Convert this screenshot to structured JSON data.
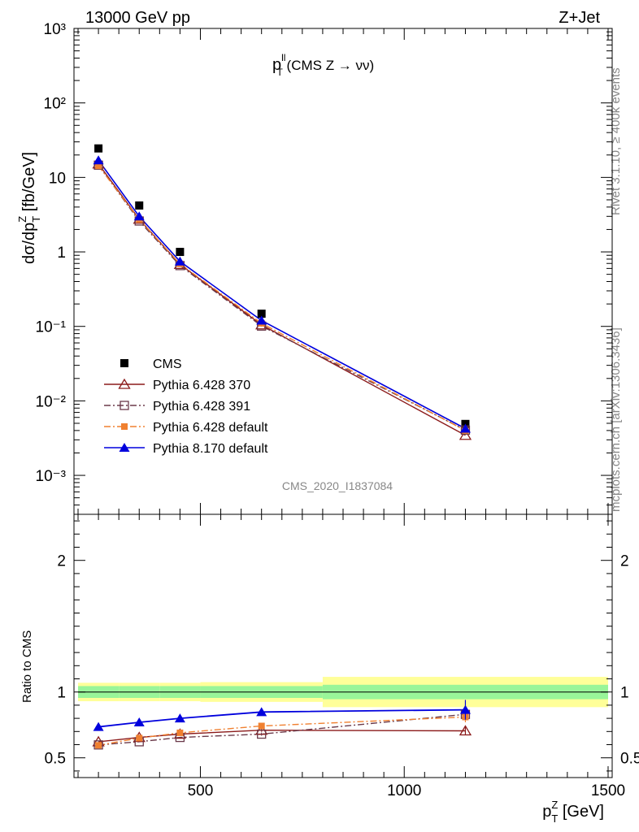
{
  "header": {
    "energy_label": "13000 GeV pp",
    "process_label": "Z+Jet"
  },
  "side_labels": {
    "rivet": "Rivet 3.1.10, ≥ 400k events",
    "mcplots": "mcplots.cern.ch [arXiv:1306.3436]"
  },
  "plot_title": {
    "main": "p",
    "sup": "ll",
    "sub": "T",
    "rest": " (CMS Z → νν)"
  },
  "analysis_id": "CMS_2020_I1837084",
  "colors": {
    "cms": "#000000",
    "p6_370": "#8b1a1a",
    "p6_391": "#6b3a4a",
    "p6_default": "#f08030",
    "p8_default": "#0000dd",
    "band_inner": "#99f599",
    "band_outer": "#ffff99"
  },
  "chart_data": [
    {
      "type": "scatter",
      "panel": "main",
      "yscale": "log",
      "ylim": [
        0.0003,
        1000
      ],
      "xlim": [
        190,
        1510
      ],
      "ylabel": {
        "main": "dσ/dp",
        "sup": "Z",
        "sub": "T",
        "rest": " [fb/GeV]"
      },
      "y_tick_labels": [
        "10⁻³",
        "10⁻²",
        "10⁻¹",
        "1",
        "10",
        "10²",
        "10³"
      ],
      "x": [
        250,
        350,
        450,
        650,
        1150
      ],
      "series": [
        {
          "name": "CMS",
          "key": "cms",
          "marker": "square-filled",
          "values": [
            24.5,
            4.2,
            1.0,
            0.148,
            0.0049
          ]
        },
        {
          "name": "Pythia 6.428 370",
          "key": "p6_370",
          "marker": "triangle-open",
          "line": "solid",
          "values": [
            15.2,
            2.75,
            0.68,
            0.105,
            0.00345
          ]
        },
        {
          "name": "Pythia 6.428 391",
          "key": "p6_391",
          "marker": "square-open",
          "line": "dashdot",
          "values": [
            14.6,
            2.6,
            0.655,
            0.101,
            0.00405
          ]
        },
        {
          "name": "Pythia 6.428 default",
          "key": "p6_default",
          "marker": "square-filled-small",
          "line": "dashdot",
          "values": [
            14.3,
            2.72,
            0.69,
            0.11,
            0.004
          ]
        },
        {
          "name": "Pythia 8.170 default",
          "key": "p8_default",
          "marker": "triangle-filled",
          "line": "solid",
          "values": [
            17.0,
            3.0,
            0.745,
            0.12,
            0.00425
          ]
        }
      ],
      "legend_position": "lower-left"
    },
    {
      "type": "scatter",
      "panel": "ratio",
      "ylim": [
        0.35,
        2.35
      ],
      "xlim": [
        190,
        1510
      ],
      "ylabel": "Ratio to CMS",
      "xlabel": {
        "main": "p",
        "sup": "Z",
        "sub": "T",
        "rest": " [GeV]"
      },
      "x_ticks": [
        500,
        1000,
        1500
      ],
      "x_tick_labels": [
        "500",
        "1000",
        "1500"
      ],
      "y_ticks": [
        0.5,
        1,
        2
      ],
      "y_tick_labels": [
        "0.5",
        "1",
        "2"
      ],
      "x": [
        250,
        350,
        450,
        650,
        1150
      ],
      "band_edges": [
        200,
        300,
        400,
        500,
        800,
        1500
      ],
      "band_inner": [
        0.045,
        0.045,
        0.045,
        0.045,
        0.055
      ],
      "band_outer": [
        0.07,
        0.07,
        0.07,
        0.075,
        0.115
      ],
      "series": [
        {
          "name": "Pythia 6.428 370",
          "key": "p6_370",
          "values": [
            0.622,
            0.655,
            0.68,
            0.71,
            0.705
          ],
          "errors": [
            0.005,
            0.005,
            0.008,
            0.012,
            0.03
          ]
        },
        {
          "name": "Pythia 6.428 391",
          "key": "p6_391",
          "values": [
            0.598,
            0.622,
            0.655,
            0.68,
            0.83
          ],
          "errors": [
            0.005,
            0.005,
            0.008,
            0.012,
            0.04
          ]
        },
        {
          "name": "Pythia 6.428 default",
          "key": "p6_default",
          "values": [
            0.595,
            0.65,
            0.69,
            0.742,
            0.81
          ],
          "errors": [
            0.005,
            0.005,
            0.008,
            0.012,
            0.04
          ]
        },
        {
          "name": "Pythia 8.170 default",
          "key": "p8_default",
          "values": [
            0.735,
            0.77,
            0.8,
            0.848,
            0.865
          ],
          "errors": [
            0.005,
            0.005,
            0.01,
            0.02,
            0.075
          ]
        }
      ]
    }
  ]
}
